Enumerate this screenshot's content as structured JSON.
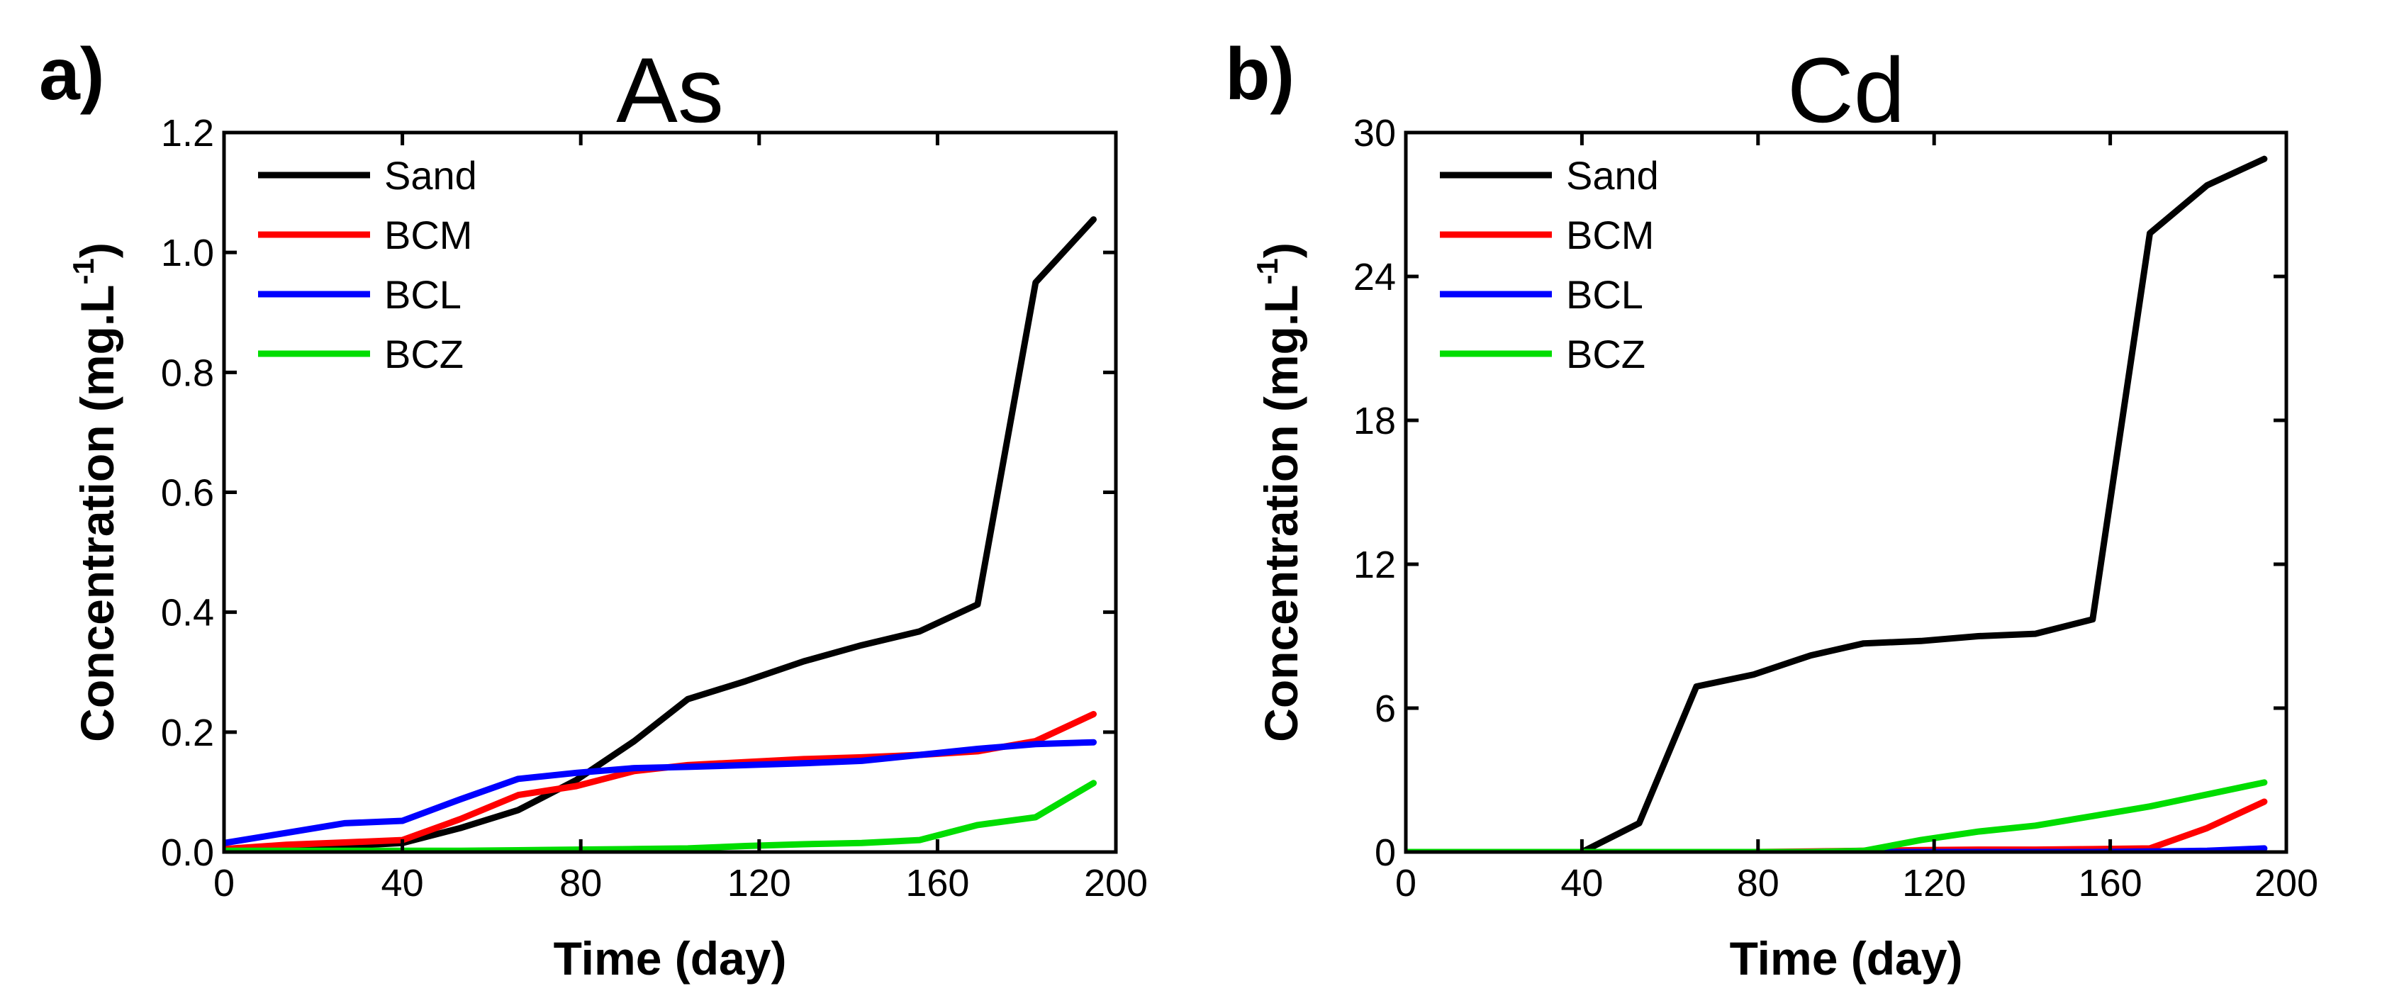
{
  "chart_data": [
    {
      "type": "line",
      "panel_label": "a)",
      "title": "As",
      "xlabel": "Time (day)",
      "ylabel_main": "Concentration (mg.L",
      "ylabel_sup": "-1",
      "ylabel_close": ")",
      "xlim": [
        0,
        200
      ],
      "ylim": [
        0,
        1.2
      ],
      "xticks": [
        0,
        40,
        80,
        120,
        160,
        200
      ],
      "yticks": [
        0.0,
        0.2,
        0.4,
        0.6,
        0.8,
        1.0,
        1.2
      ],
      "xtick_labels": [
        "0",
        "40",
        "80",
        "120",
        "160",
        "200"
      ],
      "ytick_labels": [
        "0.0",
        "0.2",
        "0.4",
        "0.6",
        "0.8",
        "1.0",
        "1.2"
      ],
      "legend_position": "top-left",
      "grid": false,
      "series": [
        {
          "name": "Sand",
          "color": "#000000",
          "x": [
            0,
            14,
            27,
            40,
            53,
            66,
            79,
            92,
            104,
            117,
            130,
            143,
            156,
            169,
            182,
            195
          ],
          "y": [
            0.005,
            0.008,
            0.01,
            0.015,
            0.04,
            0.07,
            0.12,
            0.185,
            0.255,
            0.285,
            0.318,
            0.345,
            0.368,
            0.413,
            0.95,
            1.055
          ]
        },
        {
          "name": "BCM",
          "color": "#ff0000",
          "x": [
            0,
            14,
            27,
            40,
            53,
            66,
            79,
            92,
            104,
            117,
            130,
            143,
            156,
            169,
            182,
            195
          ],
          "y": [
            0.005,
            0.012,
            0.016,
            0.02,
            0.055,
            0.095,
            0.11,
            0.135,
            0.145,
            0.15,
            0.155,
            0.158,
            0.162,
            0.168,
            0.185,
            0.23
          ]
        },
        {
          "name": "BCL",
          "color": "#0000ff",
          "x": [
            0,
            14,
            27,
            40,
            53,
            66,
            79,
            92,
            104,
            117,
            130,
            143,
            156,
            169,
            182,
            195
          ],
          "y": [
            0.015,
            0.032,
            0.048,
            0.052,
            0.088,
            0.122,
            0.132,
            0.14,
            0.142,
            0.145,
            0.148,
            0.152,
            0.162,
            0.172,
            0.18,
            0.183
          ]
        },
        {
          "name": "BCZ",
          "color": "#00dd00",
          "x": [
            0,
            14,
            27,
            40,
            53,
            66,
            79,
            92,
            104,
            117,
            130,
            143,
            156,
            169,
            182,
            195
          ],
          "y": [
            0.002,
            0.002,
            0.002,
            0.002,
            0.002,
            0.003,
            0.004,
            0.005,
            0.006,
            0.01,
            0.013,
            0.015,
            0.02,
            0.045,
            0.058,
            0.115
          ]
        }
      ]
    },
    {
      "type": "line",
      "panel_label": "b)",
      "title": "Cd",
      "xlabel": "Time (day)",
      "ylabel_main": "Concentration (mg.L",
      "ylabel_sup": "-1",
      "ylabel_close": ")",
      "xlim": [
        0,
        200
      ],
      "ylim": [
        0,
        30
      ],
      "xticks": [
        0,
        40,
        80,
        120,
        160,
        200
      ],
      "yticks": [
        0,
        6,
        12,
        18,
        24,
        30
      ],
      "xtick_labels": [
        "0",
        "40",
        "80",
        "120",
        "160",
        "200"
      ],
      "ytick_labels": [
        "0",
        "6",
        "12",
        "18",
        "24",
        "30"
      ],
      "legend_position": "top-left",
      "grid": false,
      "series": [
        {
          "name": "Sand",
          "color": "#000000",
          "x": [
            0,
            14,
            27,
            40,
            53,
            66,
            79,
            92,
            104,
            117,
            130,
            143,
            156,
            169,
            182,
            195
          ],
          "y": [
            0,
            0,
            0,
            0,
            1.2,
            6.9,
            7.4,
            8.2,
            8.7,
            8.8,
            9.0,
            9.1,
            9.7,
            25.8,
            27.8,
            28.9
          ]
        },
        {
          "name": "BCM",
          "color": "#ff0000",
          "x": [
            0,
            14,
            27,
            40,
            53,
            66,
            79,
            92,
            104,
            117,
            130,
            143,
            156,
            169,
            182,
            195
          ],
          "y": [
            0,
            0,
            0,
            0,
            0,
            0,
            0,
            0.02,
            0.05,
            0.08,
            0.1,
            0.1,
            0.12,
            0.15,
            1.0,
            2.1
          ]
        },
        {
          "name": "BCL",
          "color": "#0000ff",
          "x": [
            0,
            14,
            27,
            40,
            53,
            66,
            79,
            92,
            104,
            117,
            130,
            143,
            156,
            169,
            182,
            195
          ],
          "y": [
            0,
            0,
            0,
            0,
            0,
            0,
            0,
            0,
            0,
            0,
            0,
            0,
            0,
            0.02,
            0.05,
            0.15
          ]
        },
        {
          "name": "BCZ",
          "color": "#00dd00",
          "x": [
            0,
            14,
            27,
            40,
            53,
            66,
            79,
            92,
            104,
            117,
            130,
            143,
            156,
            169,
            182,
            195
          ],
          "y": [
            0,
            0,
            0,
            0,
            0,
            0,
            0,
            0,
            0.05,
            0.5,
            0.85,
            1.1,
            1.5,
            1.9,
            2.4,
            2.9
          ]
        }
      ]
    }
  ]
}
